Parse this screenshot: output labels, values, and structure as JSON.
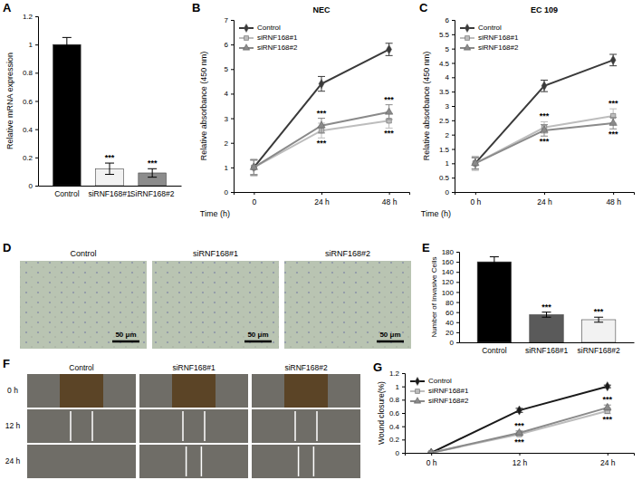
{
  "chart_data": [
    {
      "panel_label": "A",
      "type": "bar",
      "y_label": "Relative mRNA expression",
      "categories": [
        "Control",
        "siRNF168#1",
        "SiRNF168#2"
      ],
      "values": [
        1.0,
        0.12,
        0.09
      ],
      "errors": [
        0.05,
        0.04,
        0.03
      ],
      "significance": [
        null,
        "***",
        "***"
      ],
      "colors": [
        "#000000",
        "#f2f2f2",
        "#8c8c8c"
      ],
      "ylim": [
        0,
        1.2
      ],
      "yticks": [
        0,
        0.2,
        0.4,
        0.6,
        0.8,
        1,
        1.2
      ]
    },
    {
      "panel_label": "B",
      "type": "line",
      "title": "NEC",
      "y_label": "Relative absorbance (450 nm)",
      "x_label": "Time (h)",
      "categories": [
        "0",
        "24 h",
        "48 h"
      ],
      "series": [
        {
          "name": "Control",
          "color": "#3a3a3a",
          "marker": "diamond",
          "values": [
            1.0,
            4.4,
            5.8
          ],
          "errors": [
            0.3,
            0.3,
            0.25
          ],
          "significance": [
            null,
            null,
            null
          ]
        },
        {
          "name": "siRNF168#1",
          "color": "#bdbdbd",
          "marker": "square",
          "values": [
            1.0,
            2.5,
            2.9
          ],
          "errors": [
            0.35,
            0.3,
            0.3
          ],
          "significance": [
            null,
            "***",
            "***"
          ]
        },
        {
          "name": "siRNF168#2",
          "color": "#8a8a8a",
          "marker": "triangle",
          "values": [
            1.0,
            2.7,
            3.25
          ],
          "errors": [
            0.3,
            0.3,
            0.3
          ],
          "significance": [
            null,
            "***",
            "***"
          ]
        }
      ],
      "legend": "top-left",
      "ylim": [
        0,
        7
      ],
      "yticks": [
        0,
        1,
        2,
        3,
        4,
        5,
        6,
        7
      ]
    },
    {
      "panel_label": "C",
      "type": "line",
      "title": "EC 109",
      "y_label": "Relative absorbance (450 nm)",
      "x_label": "Time (h)",
      "categories": [
        "0 h",
        "24 h",
        "48 h"
      ],
      "series": [
        {
          "name": "Control",
          "color": "#3a3a3a",
          "marker": "diamond",
          "values": [
            1.0,
            3.7,
            4.6
          ],
          "errors": [
            0.2,
            0.2,
            0.2
          ],
          "significance": [
            null,
            null,
            null
          ]
        },
        {
          "name": "siRNF168#1",
          "color": "#bdbdbd",
          "marker": "square",
          "values": [
            1.0,
            2.25,
            2.65
          ],
          "errors": [
            0.25,
            0.2,
            0.25
          ],
          "significance": [
            null,
            "***",
            "***"
          ]
        },
        {
          "name": "siRNF168#2",
          "color": "#8a8a8a",
          "marker": "triangle",
          "values": [
            1.0,
            2.15,
            2.4
          ],
          "errors": [
            0.2,
            0.2,
            0.2
          ],
          "significance": [
            null,
            "***",
            "***"
          ]
        }
      ],
      "legend": "top-left",
      "ylim": [
        0,
        6
      ],
      "yticks": [
        0,
        0.5,
        1,
        1.5,
        2,
        2.5,
        3,
        3.5,
        4,
        4.5,
        5,
        5.5,
        6
      ]
    },
    {
      "panel_label": "E",
      "type": "bar",
      "y_label": "Number of Invasive Cells",
      "categories": [
        "Control",
        "siRNF168#1",
        "siRNF168#2"
      ],
      "values": [
        160,
        55,
        45
      ],
      "errors": [
        10,
        5,
        5
      ],
      "significance": [
        null,
        "***",
        "***"
      ],
      "colors": [
        "#000000",
        "#5a5a5a",
        "#f2f2f2"
      ],
      "ylim": [
        0,
        180
      ],
      "yticks": [
        0,
        20,
        40,
        60,
        80,
        100,
        120,
        140,
        160,
        180
      ]
    },
    {
      "panel_label": "G",
      "type": "line",
      "y_label": "Wound closure(%)",
      "categories": [
        "0 h",
        "12 h",
        "24 h"
      ],
      "series": [
        {
          "name": "Control",
          "color": "#1a1a1a",
          "marker": "diamond",
          "values": [
            0,
            0.64,
            1.0
          ],
          "errors": [
            0.01,
            0.03,
            0.02
          ],
          "significance": [
            null,
            null,
            null
          ]
        },
        {
          "name": "siRNF168#1",
          "color": "#bdbdbd",
          "marker": "square",
          "values": [
            0,
            0.28,
            0.63
          ],
          "errors": [
            0.01,
            0.03,
            0.04
          ],
          "significance": [
            null,
            "***",
            "***"
          ]
        },
        {
          "name": "siRNF168#2",
          "color": "#8a8a8a",
          "marker": "triangle",
          "values": [
            0,
            0.3,
            0.68
          ],
          "errors": [
            0.01,
            0.03,
            0.04
          ],
          "significance": [
            null,
            "***",
            "***"
          ]
        }
      ],
      "legend": "top-left",
      "ylim": [
        0,
        1.2
      ],
      "yticks": [
        0,
        0.2,
        0.4,
        0.6,
        0.8,
        1,
        1.2
      ]
    }
  ],
  "image_panels": [
    {
      "panel_label": "D",
      "columns": [
        "Control",
        "siRNF168#1",
        "siRNF168#2"
      ],
      "scale_bar": "50 μm"
    },
    {
      "panel_label": "F",
      "columns": [
        "Control",
        "siRNF168#1",
        "siRNF168#2"
      ],
      "rows": [
        "0 h",
        "12 h",
        "24 h"
      ]
    }
  ]
}
